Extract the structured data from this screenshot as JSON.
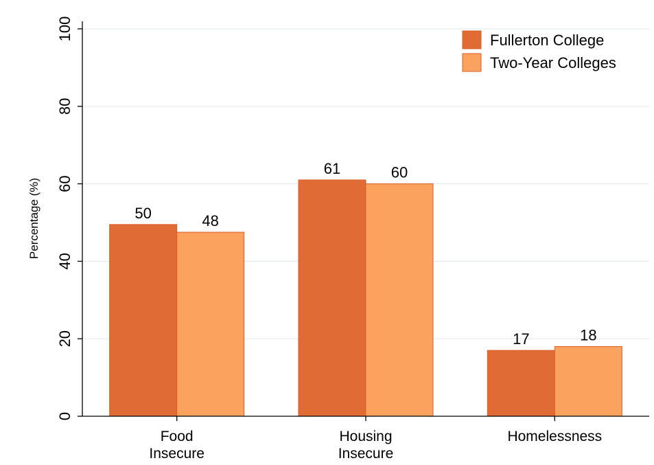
{
  "chart_data": {
    "type": "bar",
    "title": "",
    "xlabel": "",
    "ylabel": "Percentage (%)",
    "ylim": [
      0,
      100
    ],
    "yticks": [
      0,
      20,
      40,
      60,
      80,
      100
    ],
    "grid": true,
    "legend_position": "top-right",
    "categories": [
      {
        "lines": [
          "Food",
          "Insecure"
        ]
      },
      {
        "lines": [
          "Housing",
          "Insecure"
        ]
      },
      {
        "lines": [
          "Homelessness"
        ]
      }
    ],
    "series": [
      {
        "name": "Fullerton College",
        "color": "#E06B34",
        "values": [
          49.5,
          61,
          17
        ],
        "labels": [
          "50",
          "61",
          "17"
        ]
      },
      {
        "name": "Two-Year Colleges",
        "color": "#FBA25F",
        "values": [
          47.5,
          60,
          18
        ],
        "labels": [
          "48",
          "60",
          "18"
        ]
      }
    ]
  }
}
